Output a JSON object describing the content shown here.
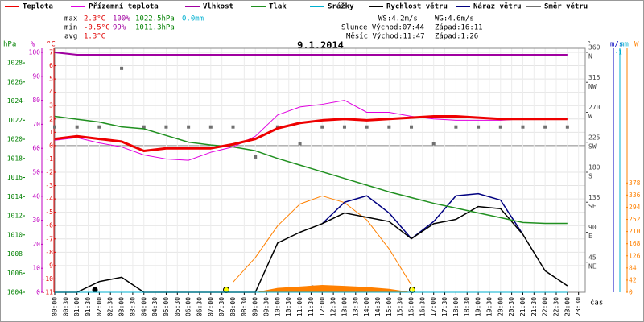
{
  "chart_data": {
    "type": "line",
    "title": "9.1.2014",
    "xlabel": "čas",
    "xlim": [
      0,
      23.8
    ],
    "xticks": [
      {
        "value": 0,
        "label": "00:00"
      },
      {
        "value": 0.5,
        "label": "00:30"
      },
      {
        "value": 1,
        "label": "01:00"
      },
      {
        "value": 1.5,
        "label": "01:30"
      },
      {
        "value": 2,
        "label": "02:00"
      },
      {
        "value": 2.5,
        "label": "02:30"
      },
      {
        "value": 3,
        "label": "03:00"
      },
      {
        "value": 3.5,
        "label": "03:30"
      },
      {
        "value": 4,
        "label": "04:00"
      },
      {
        "value": 4.5,
        "label": "04:30"
      },
      {
        "value": 5,
        "label": "05:00"
      },
      {
        "value": 5.5,
        "label": "05:30"
      },
      {
        "value": 6,
        "label": "06:00"
      },
      {
        "value": 6.5,
        "label": "06:30"
      },
      {
        "value": 7,
        "label": "07:00"
      },
      {
        "value": 7.5,
        "label": "07:30"
      },
      {
        "value": 8,
        "label": "08:00"
      },
      {
        "value": 8.5,
        "label": "08:30"
      },
      {
        "value": 9,
        "label": "09:00"
      },
      {
        "value": 9.5,
        "label": "09:30"
      },
      {
        "value": 10,
        "label": "10:00"
      },
      {
        "value": 10.5,
        "label": "10:30"
      },
      {
        "value": 11,
        "label": "11:00"
      },
      {
        "value": 11.5,
        "label": "11:30"
      },
      {
        "value": 12,
        "label": "12:00"
      },
      {
        "value": 12.5,
        "label": "12:30"
      },
      {
        "value": 13,
        "label": "13:00"
      },
      {
        "value": 13.5,
        "label": "13:30"
      },
      {
        "value": 14,
        "label": "14:00"
      },
      {
        "value": 14.5,
        "label": "14:30"
      },
      {
        "value": 15,
        "label": "15:00"
      },
      {
        "value": 15.5,
        "label": "15:30"
      },
      {
        "value": 16,
        "label": "16:00"
      },
      {
        "value": 16.5,
        "label": "16:30"
      },
      {
        "value": 17,
        "label": "17:00"
      },
      {
        "value": 17.5,
        "label": "17:30"
      },
      {
        "value": 18,
        "label": "18:00"
      },
      {
        "value": 18.5,
        "label": "18:30"
      },
      {
        "value": 19,
        "label": "19:00"
      },
      {
        "value": 19.5,
        "label": "19:30"
      },
      {
        "value": 20,
        "label": "20:00"
      },
      {
        "value": 20.5,
        "label": "20:30"
      },
      {
        "value": 21,
        "label": "21:00"
      },
      {
        "value": 21.5,
        "label": "21:30"
      },
      {
        "value": 22,
        "label": "22:00"
      },
      {
        "value": 22.5,
        "label": "22:30"
      },
      {
        "value": 23,
        "label": "23:00"
      },
      {
        "value": 23.5,
        "label": "23:30"
      }
    ],
    "grid": true,
    "x": [
      0,
      1,
      2,
      3,
      4,
      5,
      6,
      7,
      8,
      9,
      10,
      11,
      12,
      13,
      14,
      15,
      16,
      17,
      18,
      19,
      20,
      21,
      22,
      23
    ],
    "axes": {
      "hPa": {
        "label": "hPa",
        "color": "#008000",
        "lim": [
          1004,
          1029.1
        ],
        "ticks": [
          1004,
          1006,
          1008,
          1010,
          1012,
          1014,
          1016,
          1018,
          1020,
          1022,
          1024,
          1026,
          1028
        ]
      },
      "pct": {
        "label": "%",
        "color": "#c000c0",
        "lim": [
          0,
          100
        ],
        "ticks": [
          0,
          10,
          20,
          30,
          40,
          50,
          60,
          70,
          80,
          90,
          100
        ]
      },
      "degC": {
        "label": "°C",
        "color": "#e00000",
        "lim": [
          -11,
          7
        ],
        "ticks": [
          -11,
          -10,
          -9,
          -8,
          -7,
          -6,
          -5,
          -4,
          -3,
          -2,
          -1,
          0,
          1,
          2,
          3,
          4,
          5,
          6,
          7
        ]
      },
      "deg": {
        "label": "°",
        "color": "#444444",
        "lim": [
          0,
          360
        ],
        "ticks": [
          45,
          90,
          135,
          180,
          225,
          270,
          315,
          360
        ],
        "directions": [
          "NE",
          "E",
          "SE",
          "S",
          "SW",
          "W",
          "NW",
          "N"
        ]
      },
      "ms": {
        "label": "m/s",
        "color": "#0000c0",
        "lim": [
          0,
          11.2
        ],
        "ticks": []
      },
      "mm": {
        "label": "mm",
        "color": "#00b0d0",
        "lim": [
          0,
          1
        ],
        "ticks": [
          1
        ]
      },
      "W": {
        "label": "W",
        "color": "#ff8000",
        "lim": [
          0,
          830
        ],
        "ticks": [
          0,
          42,
          84,
          126,
          168,
          210,
          252,
          294,
          336,
          378
        ]
      }
    },
    "series": [
      {
        "name": "Teplota",
        "color": "#ee0000",
        "axis": "degC",
        "width": 3,
        "values": [
          0.5,
          0.7,
          0.5,
          0.3,
          -0.4,
          -0.2,
          -0.2,
          -0.2,
          0.1,
          0.5,
          1.3,
          1.7,
          1.9,
          2.0,
          1.9,
          2.0,
          2.1,
          2.2,
          2.2,
          2.1,
          2.0,
          2.0,
          2.0,
          2.0
        ]
      },
      {
        "name": "Přízemní teplota",
        "color": "#e000e0",
        "axis": "degC",
        "width": 1,
        "values": [
          0.4,
          0.6,
          0.2,
          -0.1,
          -0.7,
          -1.0,
          -1.1,
          -0.5,
          -0.1,
          0.7,
          2.3,
          2.9,
          3.1,
          3.4,
          2.5,
          2.5,
          2.2,
          2.0,
          1.9,
          1.9,
          1.9,
          2.0,
          2.0,
          2.0
        ]
      },
      {
        "name": "Vlhkost",
        "color": "#a000a0",
        "axis": "pct",
        "width": 2,
        "values": [
          100,
          99,
          99,
          99,
          99,
          99,
          99,
          99,
          99,
          99,
          99,
          99,
          99,
          99,
          99,
          99,
          99,
          99,
          99,
          99,
          99,
          99,
          99,
          99
        ]
      },
      {
        "name": "Tlak",
        "color": "#209020",
        "axis": "hPa",
        "width": 1.5,
        "values": [
          1022.4,
          1022.1,
          1021.8,
          1021.3,
          1021.1,
          1020.4,
          1019.7,
          1019.4,
          1019.2,
          1018.8,
          1018.0,
          1017.3,
          1016.6,
          1015.9,
          1015.2,
          1014.5,
          1013.9,
          1013.3,
          1012.8,
          1012.3,
          1011.8,
          1011.3,
          1011.2,
          1011.2
        ]
      },
      {
        "name": "Srážky",
        "color": "#00b0d0",
        "axis": "mm",
        "width": 1,
        "values": [
          0,
          0,
          0,
          0,
          0,
          0,
          0,
          0,
          0,
          0,
          0,
          0,
          0,
          0,
          0,
          0,
          0,
          0,
          0,
          0,
          0,
          0,
          0,
          0
        ]
      },
      {
        "name": "Rychlost větru",
        "color": "#000000",
        "axis": "ms",
        "width": 1.5,
        "values": [
          0,
          0,
          0.5,
          0.7,
          0,
          0,
          0,
          0,
          0,
          0,
          2.3,
          2.8,
          3.2,
          3.7,
          3.5,
          3.3,
          2.5,
          3.2,
          3.4,
          4.0,
          3.9,
          2.7,
          1.0,
          0.3
        ]
      },
      {
        "name": "Náraz větru",
        "color": "#000080",
        "axis": "ms",
        "width": 1.5,
        "values": [
          null,
          null,
          null,
          null,
          null,
          null,
          null,
          null,
          null,
          null,
          null,
          null,
          3.2,
          4.2,
          4.5,
          3.7,
          2.5,
          3.3,
          4.5,
          4.6,
          4.3,
          2.7,
          null,
          null
        ]
      },
      {
        "name": "Směr větru",
        "color": "#707070",
        "axis": "deg",
        "style": "squares",
        "values": [
          248,
          248,
          248,
          336,
          248,
          248,
          248,
          248,
          248,
          203,
          248,
          223,
          248,
          248,
          248,
          248,
          248,
          223,
          248,
          248,
          248,
          248,
          248,
          248
        ]
      },
      {
        "color": "#ff8000",
        "axis": "W",
        "width": 1,
        "values": [
          null,
          null,
          null,
          null,
          null,
          null,
          null,
          null,
          35,
          120,
          230,
          305,
          333,
          310,
          250,
          150,
          25,
          null,
          null,
          null,
          null,
          null,
          null,
          null
        ]
      },
      {
        "color": "#ff8000",
        "axis": "W",
        "area": true,
        "values": [
          null,
          null,
          null,
          null,
          null,
          null,
          null,
          null,
          null,
          0,
          15,
          20,
          25,
          22,
          18,
          12,
          0,
          null,
          null,
          null,
          null,
          null,
          null,
          null
        ]
      }
    ],
    "summary": {
      "max": "max",
      "max_t": "2.3°C",
      "max_h": "100%",
      "max_p": "1022.5hPa",
      "max_r": "0.0mm",
      "min": "min",
      "min_t": "-0.5°C",
      "min_h": "99%",
      "min_p": "1011.3hPa",
      "avg": "avg",
      "avg_t": "1.3°C",
      "ws": "WS:4.2m/s",
      "wg": "WG:4.6m/s",
      "sun": "Slunce Východ:07:44",
      "sun_set": "Západ:16:11",
      "moon": "Měsíc Východ:11:47",
      "moon_set": "Západ:1:26"
    }
  }
}
